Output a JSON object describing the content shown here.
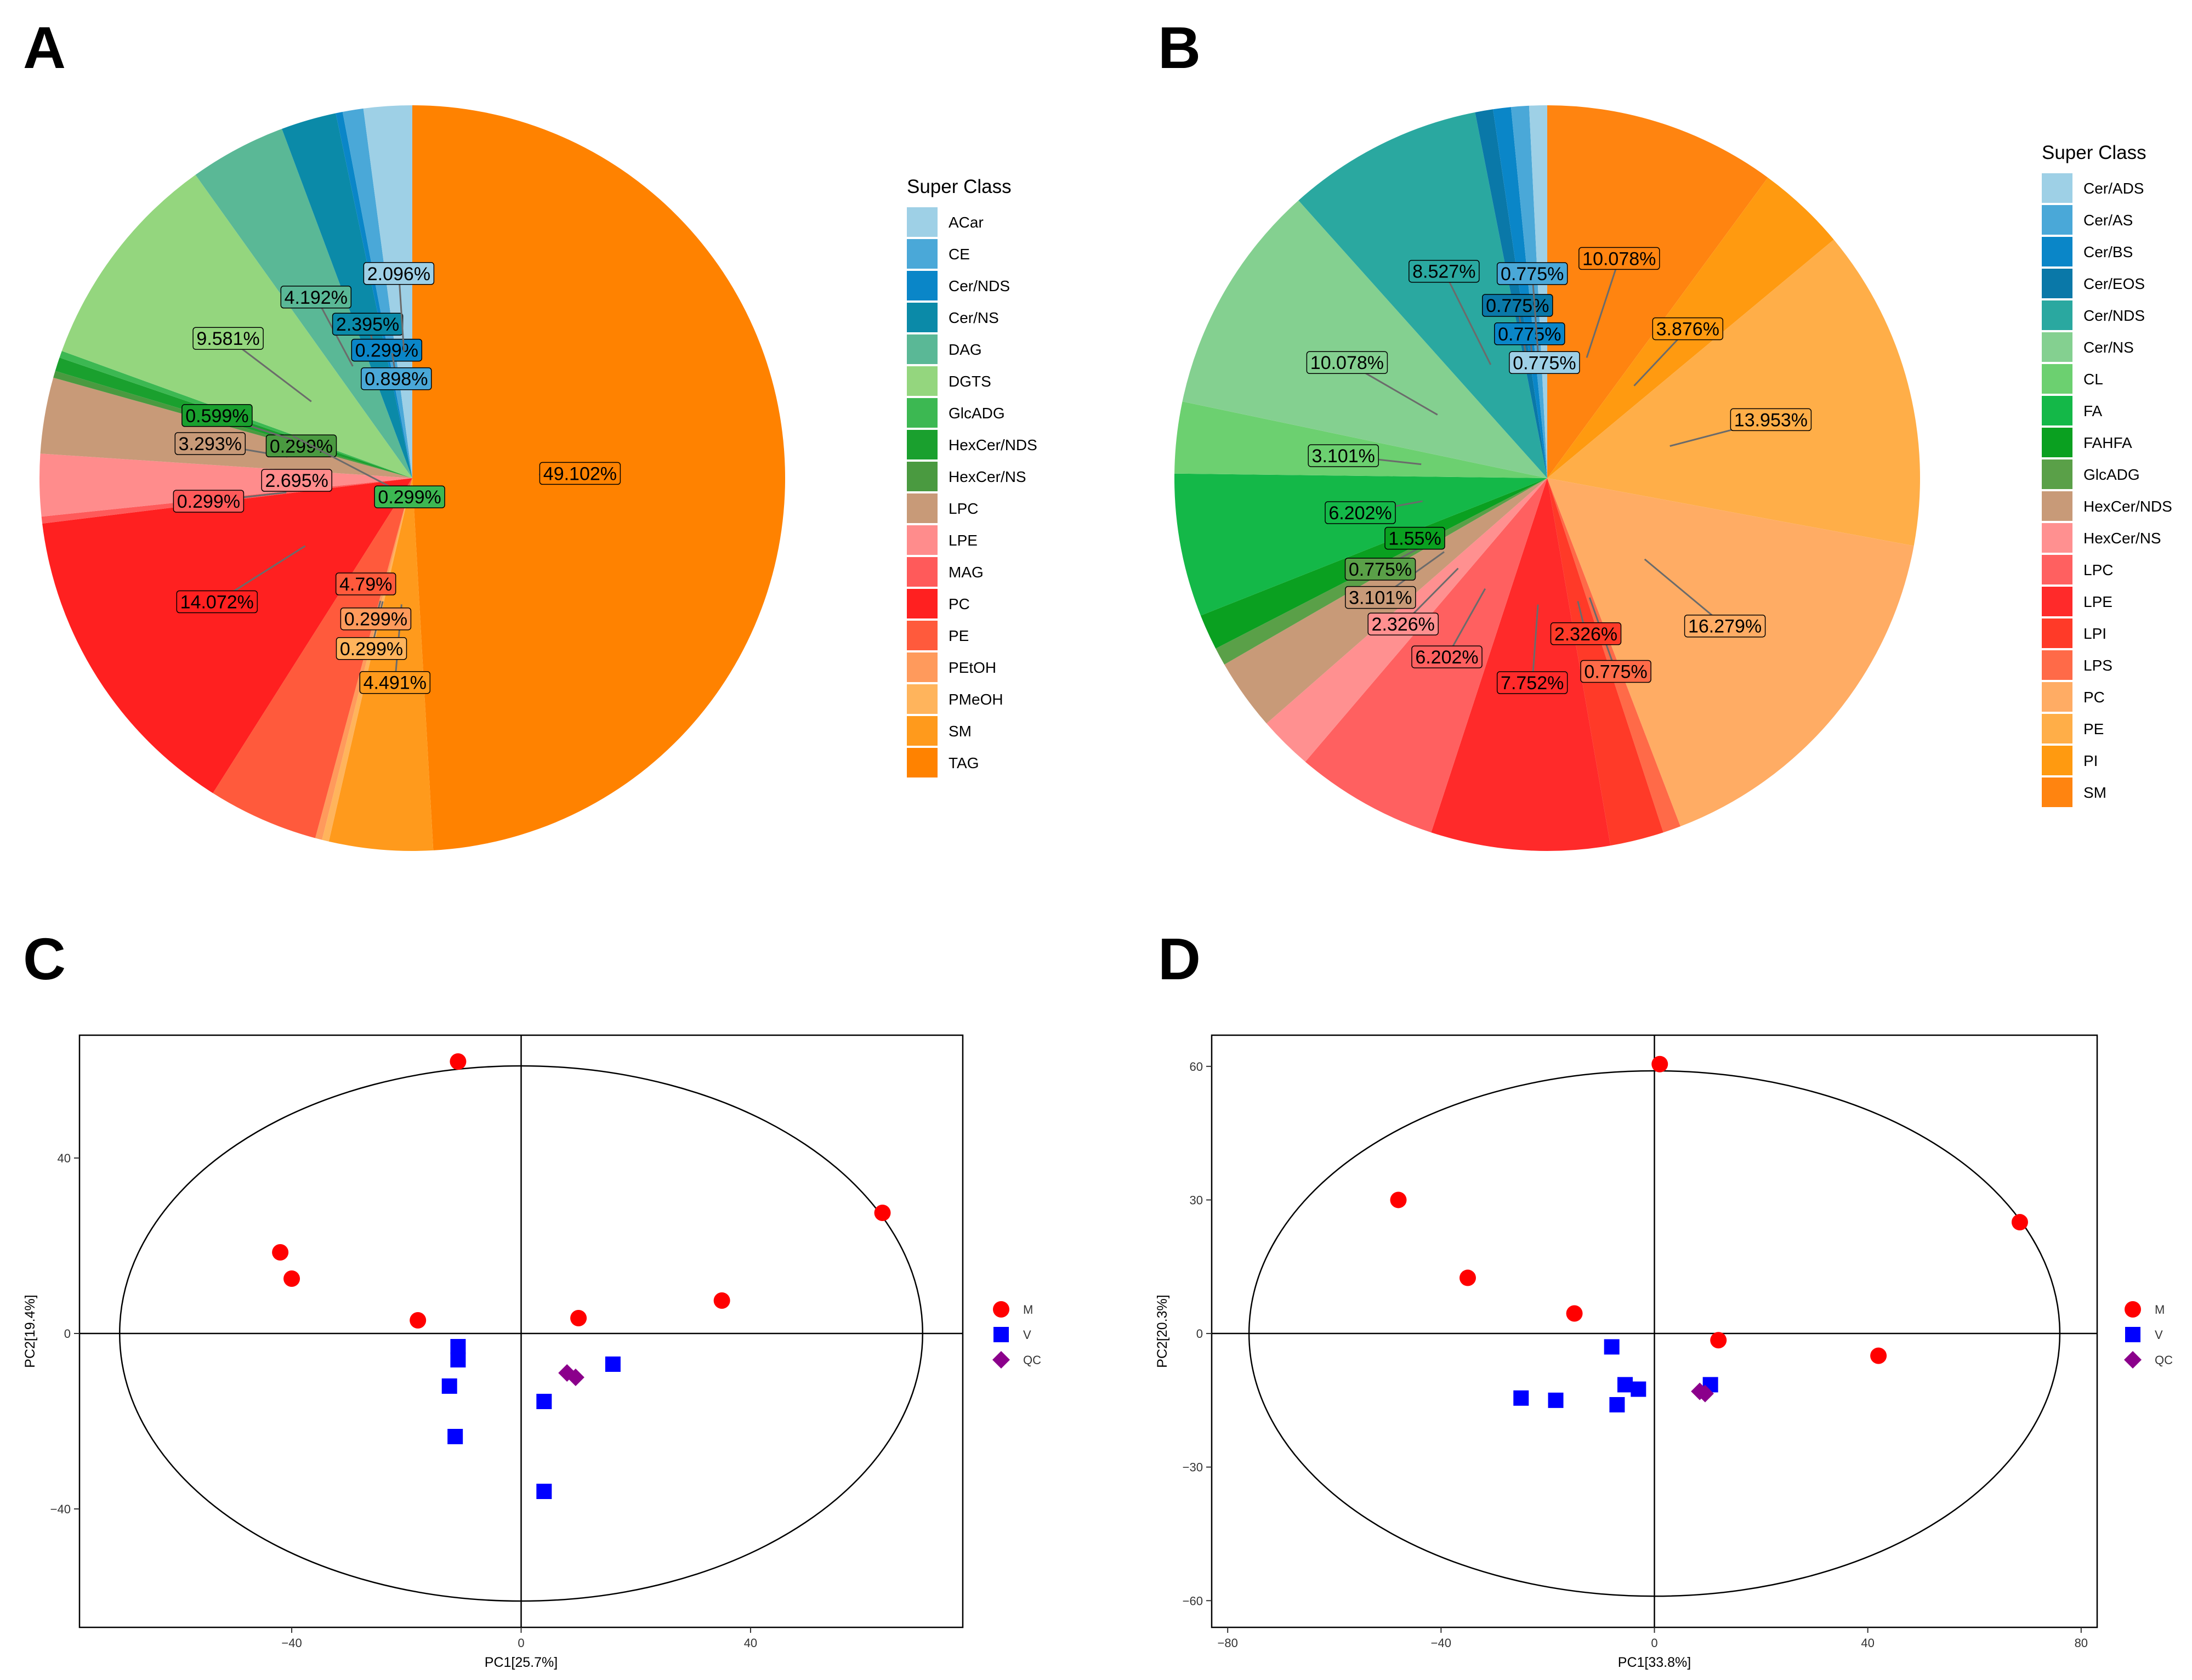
{
  "panels": [
    "A",
    "B",
    "C",
    "D"
  ],
  "colors": {
    "M": "#ff0000",
    "V": "#0000ff",
    "QC": "#8b008b"
  },
  "chart_data": [
    {
      "panel": "A",
      "type": "pie",
      "legend_title": "Super Class",
      "slices": [
        {
          "label": "ACar",
          "value": 2.096,
          "pct": "2.096%",
          "color": "#9ed0e6"
        },
        {
          "label": "CE",
          "value": 0.898,
          "pct": "0.898%",
          "color": "#4aa8d8"
        },
        {
          "label": "Cer/NDS",
          "value": 0.299,
          "pct": "0.299%",
          "color": "#0a86c8"
        },
        {
          "label": "Cer/NS",
          "value": 2.395,
          "pct": "2.395%",
          "color": "#0b8aa8"
        },
        {
          "label": "DAG",
          "value": 4.192,
          "pct": "4.192%",
          "color": "#5ab896"
        },
        {
          "label": "DGTS",
          "value": 9.581,
          "pct": "9.581%",
          "color": "#94d67e"
        },
        {
          "label": "GlcADG",
          "value": 0.299,
          "pct": "0.299%",
          "color": "#3cb852"
        },
        {
          "label": "HexCer/NDS",
          "value": 0.599,
          "pct": "0.599%",
          "color": "#1aa02e"
        },
        {
          "label": "HexCer/NS",
          "value": 0.299,
          "pct": "0.299%",
          "color": "#4a9a40"
        },
        {
          "label": "LPC",
          "value": 3.293,
          "pct": "3.293%",
          "color": "#c89a78"
        },
        {
          "label": "LPE",
          "value": 2.695,
          "pct": "2.695%",
          "color": "#ff8c8c"
        },
        {
          "label": "MAG",
          "value": 0.299,
          "pct": "0.299%",
          "color": "#ff5a5a"
        },
        {
          "label": "PC",
          "value": 14.072,
          "pct": "14.072%",
          "color": "#ff2020"
        },
        {
          "label": "PE",
          "value": 4.79,
          "pct": "4.79%",
          "color": "#ff5a3c"
        },
        {
          "label": "PEtOH",
          "value": 0.299,
          "pct": "0.299%",
          "color": "#ff9a5c"
        },
        {
          "label": "PMeOH",
          "value": 0.299,
          "pct": "0.299%",
          "color": "#ffb45c"
        },
        {
          "label": "SM",
          "value": 4.491,
          "pct": "4.491%",
          "color": "#ff9a1c"
        },
        {
          "label": "TAG",
          "value": 49.102,
          "pct": "49.102%",
          "color": "#ff8200"
        }
      ]
    },
    {
      "panel": "B",
      "type": "pie",
      "legend_title": "Super Class",
      "slices": [
        {
          "label": "Cer/ADS",
          "value": 0.775,
          "pct": "0.775%",
          "color": "#9ed0e6"
        },
        {
          "label": "Cer/AS",
          "value": 0.775,
          "pct": "0.775%",
          "color": "#4aa8d8"
        },
        {
          "label": "Cer/BS",
          "value": 0.775,
          "pct": "0.775%",
          "color": "#0a86c8"
        },
        {
          "label": "Cer/EOS",
          "value": 0.775,
          "pct": "0.775%",
          "color": "#0a78a8"
        },
        {
          "label": "Cer/NDS",
          "value": 8.527,
          "pct": "8.527%",
          "color": "#2aa8a0"
        },
        {
          "label": "Cer/NS",
          "value": 10.078,
          "pct": "10.078%",
          "color": "#84d090"
        },
        {
          "label": "CL",
          "value": 3.101,
          "pct": "3.101%",
          "color": "#6cd070"
        },
        {
          "label": "FA",
          "value": 6.202,
          "pct": "6.202%",
          "color": "#14b848"
        },
        {
          "label": "FAHFA",
          "value": 1.55,
          "pct": "1.55%",
          "color": "#0aa020"
        },
        {
          "label": "GlcADG",
          "value": 0.775,
          "pct": "0.775%",
          "color": "#5aa048"
        },
        {
          "label": "HexCer/NDS",
          "value": 3.101,
          "pct": "3.101%",
          "color": "#c89a78"
        },
        {
          "label": "HexCer/NS",
          "value": 2.326,
          "pct": "2.326%",
          "color": "#ff9090"
        },
        {
          "label": "LPC",
          "value": 6.202,
          "pct": "6.202%",
          "color": "#ff6060"
        },
        {
          "label": "LPE",
          "value": 7.752,
          "pct": "7.752%",
          "color": "#ff2a2a"
        },
        {
          "label": "LPI",
          "value": 2.326,
          "pct": "2.326%",
          "color": "#ff3a28"
        },
        {
          "label": "LPS",
          "value": 0.775,
          "pct": "0.775%",
          "color": "#ff6a48"
        },
        {
          "label": "PC",
          "value": 16.279,
          "pct": "16.279%",
          "color": "#ffac64"
        },
        {
          "label": "PE",
          "value": 13.953,
          "pct": "13.953%",
          "color": "#ffae48"
        },
        {
          "label": "PI",
          "value": 3.876,
          "pct": "3.876%",
          "color": "#ff9a10"
        },
        {
          "label": "SM",
          "value": 10.078,
          "pct": "10.078%",
          "color": "#ff8410"
        }
      ]
    },
    {
      "panel": "C",
      "type": "scatter",
      "xlabel": "PC1[25.7%]",
      "ylabel": "PC2[19.4%]",
      "xlim": [
        -77,
        77
      ],
      "ylim": [
        -67,
        68
      ],
      "xticks": [
        -40,
        0,
        40
      ],
      "yticks": [
        -40,
        0,
        40
      ],
      "xtick_labels": [
        "−40",
        "0",
        "40"
      ],
      "ytick_labels": [
        "−40",
        "0",
        "40"
      ],
      "ellipse": {
        "cx": 0,
        "cy": 0,
        "rx": 70,
        "ry": 61
      },
      "legend": [
        "M",
        "V",
        "QC"
      ],
      "series": [
        {
          "name": "M",
          "shape": "circle",
          "points": [
            [
              -11,
              62
            ],
            [
              -42,
              18.5
            ],
            [
              -40,
              12.5
            ],
            [
              -18,
              3
            ],
            [
              10,
              3.5
            ],
            [
              35,
              7.5
            ],
            [
              63,
              27.5
            ]
          ]
        },
        {
          "name": "V",
          "shape": "square",
          "points": [
            [
              -11,
              -3
            ],
            [
              -11,
              -6
            ],
            [
              -12.5,
              -12
            ],
            [
              -11.5,
              -23.5
            ],
            [
              4,
              -15.5
            ],
            [
              16,
              -7
            ],
            [
              4,
              -36
            ]
          ]
        },
        {
          "name": "QC",
          "shape": "diamond",
          "points": [
            [
              8,
              -9
            ],
            [
              9.5,
              -10
            ]
          ]
        }
      ]
    },
    {
      "panel": "D",
      "type": "scatter",
      "xlabel": "PC1[33.8%]",
      "ylabel": "PC2[20.3%]",
      "xlim": [
        -83,
        83
      ],
      "ylim": [
        -66,
        67
      ],
      "xticks": [
        -80,
        -40,
        0,
        40,
        80
      ],
      "yticks": [
        -60,
        -30,
        0,
        30,
        60
      ],
      "xtick_labels": [
        "−80",
        "−40",
        "0",
        "40",
        "80"
      ],
      "ytick_labels": [
        "−60",
        "−30",
        "0",
        "30",
        "60"
      ],
      "ellipse": {
        "cx": 0,
        "cy": 0,
        "rx": 76,
        "ry": 59
      },
      "legend": [
        "M",
        "V",
        "QC"
      ],
      "series": [
        {
          "name": "M",
          "shape": "circle",
          "points": [
            [
              1,
              60.5
            ],
            [
              -48,
              30
            ],
            [
              -35,
              12.5
            ],
            [
              -15,
              4.5
            ],
            [
              12,
              -1.5
            ],
            [
              42,
              -5
            ],
            [
              68.5,
              25
            ]
          ]
        },
        {
          "name": "V",
          "shape": "square",
          "points": [
            [
              -8,
              -3
            ],
            [
              -25,
              -14.5
            ],
            [
              -18.5,
              -15
            ],
            [
              -5.5,
              -11.5
            ],
            [
              -3,
              -12.5
            ],
            [
              -7,
              -16
            ],
            [
              10.5,
              -11.5
            ]
          ]
        },
        {
          "name": "QC",
          "shape": "diamond",
          "points": [
            [
              8.5,
              -13
            ],
            [
              9.5,
              -13.5
            ]
          ]
        }
      ]
    }
  ]
}
